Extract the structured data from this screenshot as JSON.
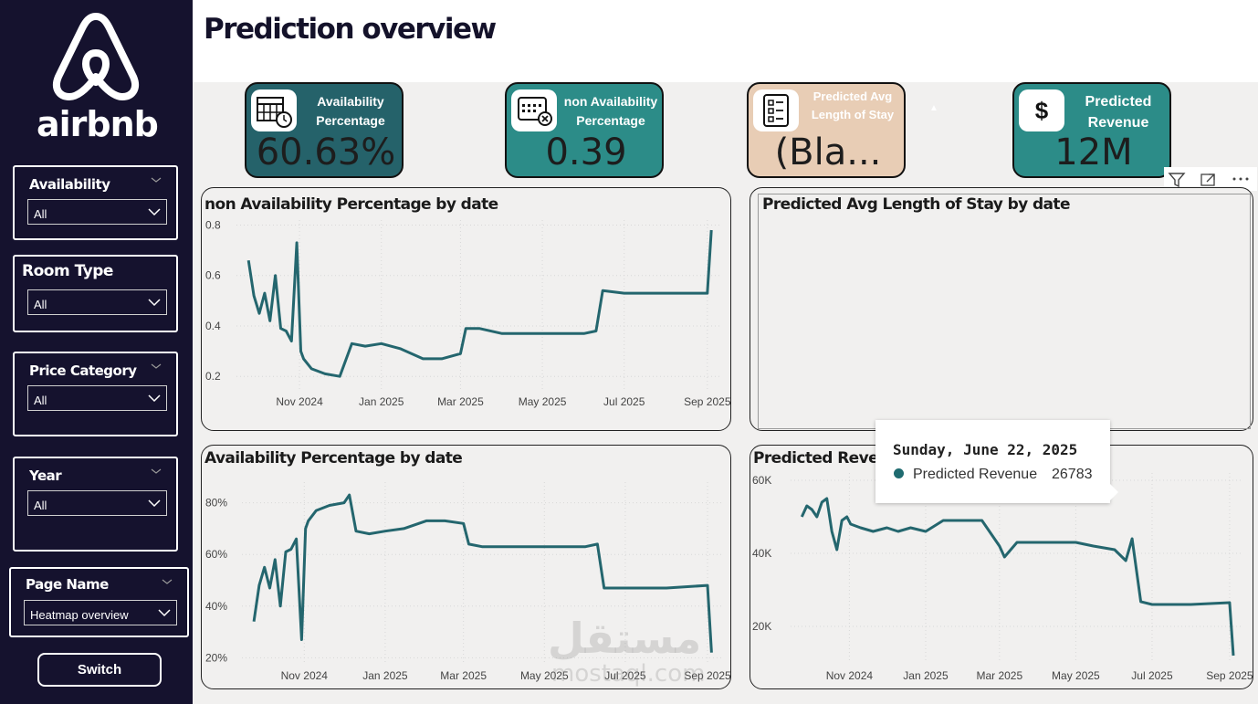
{
  "page": {
    "title": "Prediction overview"
  },
  "sidebar": {
    "logo_text": "airbnb",
    "slicers": [
      {
        "title": "Availability",
        "value": "All"
      },
      {
        "title": "Room Type",
        "value": "All"
      },
      {
        "title": "Price Category",
        "value": "All"
      },
      {
        "title": "Year",
        "value": "All"
      }
    ],
    "page_name": {
      "title": "Page Name",
      "value": "Heatmap overview"
    },
    "switch_label": "Switch"
  },
  "kpis": [
    {
      "label": "Availability Percentage",
      "value": "60.63%",
      "bg": "#25626a",
      "icon": "calendar-clock-icon"
    },
    {
      "label": "non Availability Percentage",
      "value": "0.39",
      "bg": "#2c8c88",
      "icon": "calendar-cross-icon"
    },
    {
      "label": "Predicted Avg Length of Stay",
      "value": "(Bla...",
      "bg": "#e8cdb5",
      "icon": "checklist-icon"
    },
    {
      "label": "Predicted Revenue",
      "value": "12M",
      "bg": "#2c8c88",
      "icon": "dollar-icon"
    }
  ],
  "colors": {
    "line": "#24666e",
    "sidebar": "#15122e"
  },
  "tooltip": {
    "date": "Sunday, June 22, 2025",
    "series": "Predicted Revenue",
    "value": "26783"
  },
  "watermark": {
    "main": "مستقل",
    "sub": "mostaql.com"
  },
  "chart_data": [
    {
      "type": "line",
      "title": "non Availability Percentage by date",
      "x_ticks": [
        "Nov 2024",
        "Jan 2025",
        "Mar 2025",
        "May 2025",
        "Jul 2025",
        "Sep 2025"
      ],
      "y_ticks": [
        "0.2",
        "0.4",
        "0.6",
        "0.8"
      ],
      "ylim": [
        0.15,
        0.82
      ],
      "x": [
        "2024-09-24",
        "2024-09-28",
        "2024-10-02",
        "2024-10-06",
        "2024-10-10",
        "2024-10-14",
        "2024-10-18",
        "2024-10-22",
        "2024-10-26",
        "2024-10-30",
        "2024-11-02",
        "2024-11-04",
        "2024-11-10",
        "2024-11-20",
        "2024-12-01",
        "2024-12-10",
        "2024-12-20",
        "2025-01-01",
        "2025-01-15",
        "2025-02-01",
        "2025-02-15",
        "2025-03-01",
        "2025-03-05",
        "2025-03-15",
        "2025-04-01",
        "2025-05-01",
        "2025-06-01",
        "2025-06-10",
        "2025-06-15",
        "2025-07-01",
        "2025-08-01",
        "2025-09-01",
        "2025-09-04"
      ],
      "values": [
        0.66,
        0.52,
        0.45,
        0.53,
        0.42,
        0.6,
        0.39,
        0.38,
        0.34,
        0.73,
        0.3,
        0.27,
        0.23,
        0.21,
        0.2,
        0.33,
        0.32,
        0.33,
        0.31,
        0.27,
        0.27,
        0.29,
        0.39,
        0.39,
        0.37,
        0.37,
        0.37,
        0.38,
        0.54,
        0.53,
        0.53,
        0.53,
        0.78
      ]
    },
    {
      "type": "line",
      "title": "Predicted Avg Length of Stay by date",
      "x": [],
      "values": []
    },
    {
      "type": "line",
      "title": "Availability Percentage by date",
      "x_ticks": [
        "Nov 2024",
        "Jan 2025",
        "Mar 2025",
        "May 2025",
        "Jul 2025",
        "Sep 2025"
      ],
      "y_ticks": [
        "20%",
        "40%",
        "60%",
        "80%"
      ],
      "ylim": [
        18,
        88
      ],
      "x": [
        "2024-09-24",
        "2024-09-28",
        "2024-10-02",
        "2024-10-06",
        "2024-10-10",
        "2024-10-14",
        "2024-10-18",
        "2024-10-22",
        "2024-10-26",
        "2024-10-30",
        "2024-11-02",
        "2024-11-04",
        "2024-11-10",
        "2024-11-20",
        "2024-12-01",
        "2024-12-05",
        "2024-12-10",
        "2024-12-20",
        "2025-01-01",
        "2025-01-15",
        "2025-02-01",
        "2025-02-15",
        "2025-03-01",
        "2025-03-05",
        "2025-03-15",
        "2025-04-01",
        "2025-05-01",
        "2025-06-01",
        "2025-06-10",
        "2025-06-15",
        "2025-07-01",
        "2025-08-01",
        "2025-09-01",
        "2025-09-04"
      ],
      "values": [
        34,
        48,
        55,
        47,
        58,
        40,
        61,
        62,
        66,
        27,
        70,
        73,
        77,
        79,
        80,
        83,
        69,
        68,
        69,
        70,
        73,
        73,
        72,
        64,
        63,
        63,
        63,
        63,
        64,
        47,
        47,
        47,
        48,
        22
      ]
    },
    {
      "type": "line",
      "title": "Predicted Revenue by date",
      "x_ticks": [
        "Nov 2024",
        "Jan 2025",
        "Mar 2025",
        "May 2025",
        "Jul 2025",
        "Sep 2025"
      ],
      "y_ticks": [
        "20K",
        "40K",
        "60K"
      ],
      "ylim": [
        10000,
        62000
      ],
      "x": [
        "2024-09-24",
        "2024-09-28",
        "2024-10-02",
        "2024-10-06",
        "2024-10-10",
        "2024-10-14",
        "2024-10-18",
        "2024-10-22",
        "2024-10-26",
        "2024-10-30",
        "2024-11-02",
        "2024-11-10",
        "2024-11-20",
        "2024-12-01",
        "2024-12-10",
        "2024-12-20",
        "2025-01-01",
        "2025-01-15",
        "2025-02-01",
        "2025-02-15",
        "2025-03-01",
        "2025-03-05",
        "2025-03-15",
        "2025-04-01",
        "2025-05-01",
        "2025-05-15",
        "2025-06-01",
        "2025-06-10",
        "2025-06-15",
        "2025-06-22",
        "2025-07-01",
        "2025-08-01",
        "2025-09-01",
        "2025-09-04"
      ],
      "values": [
        50000,
        53000,
        52000,
        50000,
        54000,
        55000,
        46000,
        41000,
        49000,
        50000,
        48000,
        47000,
        46000,
        47000,
        46000,
        47000,
        46000,
        49000,
        49000,
        49000,
        42000,
        39000,
        43000,
        43000,
        43000,
        42000,
        41000,
        38000,
        44000,
        26783,
        26000,
        26000,
        26500,
        12000
      ]
    }
  ]
}
